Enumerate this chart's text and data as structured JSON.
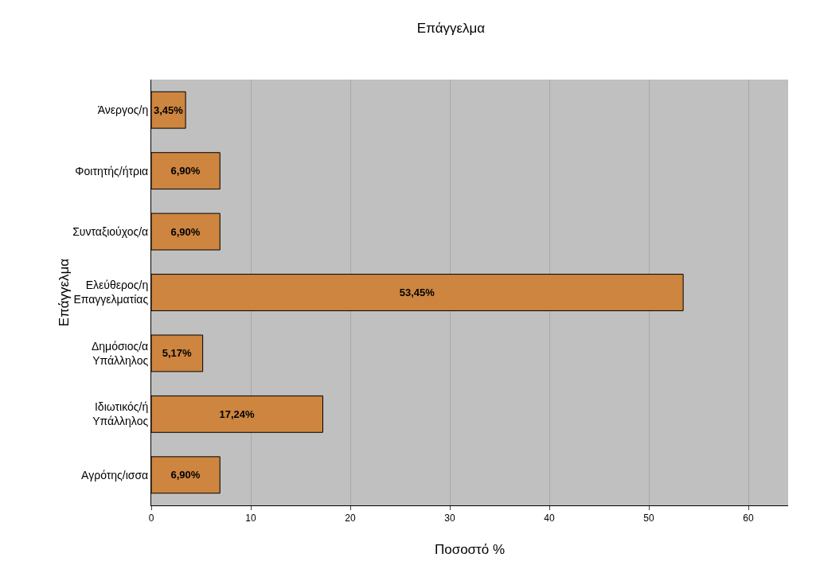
{
  "chart_data": {
    "type": "bar",
    "orientation": "horizontal",
    "title": "Επάγγελμα",
    "xlabel": "Ποσοστό %",
    "ylabel": "Επάγγελμα",
    "categories": [
      "Άνεργος/η",
      "Φοιτητής/ήτρια",
      "Συνταξιούχος/α",
      "Ελεύθερος/η Επαγγελματίας",
      "Δημόσιος/α Υπάλληλος",
      "Ιδιωτικός/ή Υπάλληλος",
      "Αγρότης/ισσα"
    ],
    "values": [
      3.45,
      6.9,
      6.9,
      53.45,
      5.17,
      17.24,
      6.9
    ],
    "value_labels": [
      "3,45%",
      "6,90%",
      "6,90%",
      "53,45%",
      "5,17%",
      "17,24%",
      "6,90%"
    ],
    "color": "#cd853f",
    "xlim": [
      0,
      64
    ],
    "xticks": [
      0,
      10,
      20,
      30,
      40,
      50,
      60
    ],
    "grid": "x"
  }
}
